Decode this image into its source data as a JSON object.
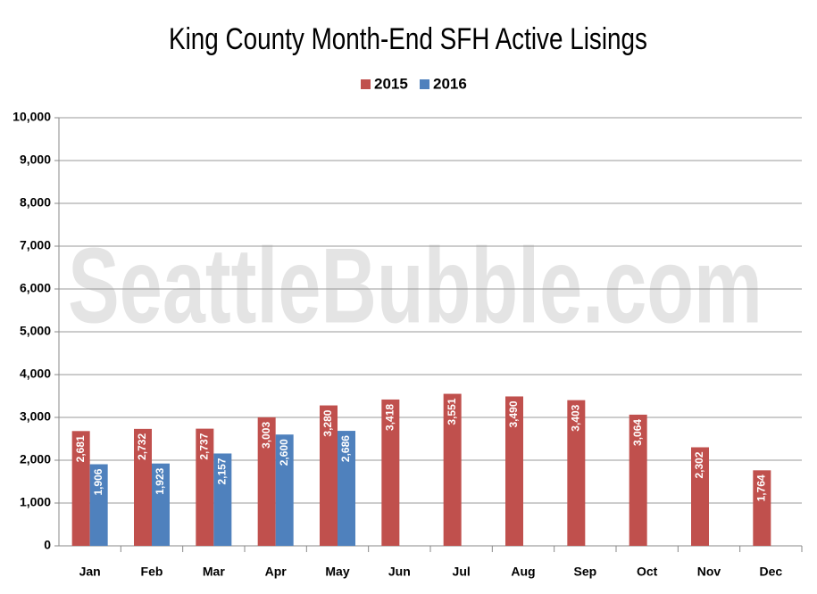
{
  "chart_data": {
    "type": "bar",
    "title": "King County Month-End SFH Active Lisings",
    "watermark": "SeattleBubble.com",
    "categories": [
      "Jan",
      "Feb",
      "Mar",
      "Apr",
      "May",
      "Jun",
      "Jul",
      "Aug",
      "Sep",
      "Oct",
      "Nov",
      "Dec"
    ],
    "series": [
      {
        "name": "2015",
        "color": "#c0504d",
        "values": [
          2681,
          2732,
          2737,
          3003,
          3280,
          3418,
          3551,
          3490,
          3403,
          3064,
          2302,
          1764
        ],
        "value_labels": [
          "2,681",
          "2,732",
          "2,737",
          "3,003",
          "3,280",
          "3,418",
          "3,551",
          "3,490",
          "3,403",
          "3,064",
          "2,302",
          "1,764"
        ]
      },
      {
        "name": "2016",
        "color": "#4f81bd",
        "values": [
          1906,
          1923,
          2157,
          2600,
          2686,
          null,
          null,
          null,
          null,
          null,
          null,
          null
        ],
        "value_labels": [
          "1,906",
          "1,923",
          "2,157",
          "2,600",
          "2,686",
          null,
          null,
          null,
          null,
          null,
          null,
          null
        ]
      }
    ],
    "ylim": [
      0,
      10000
    ],
    "yticks": [
      0,
      {
        "value": 1000,
        "label": "1,000"
      },
      {
        "value": 2000,
        "label": "2,000"
      },
      {
        "value": 3000,
        "label": "3,000"
      },
      {
        "value": 4000,
        "label": "4,000"
      },
      {
        "value": 5000,
        "label": "5,000"
      },
      {
        "value": 6000,
        "label": "6,000"
      },
      {
        "value": 7000,
        "label": "7,000"
      },
      {
        "value": 8000,
        "label": "8,000"
      },
      {
        "value": 9000,
        "label": "9,000"
      },
      {
        "value": 10000,
        "label": "10,000"
      }
    ],
    "grid": true,
    "legend": "top"
  }
}
